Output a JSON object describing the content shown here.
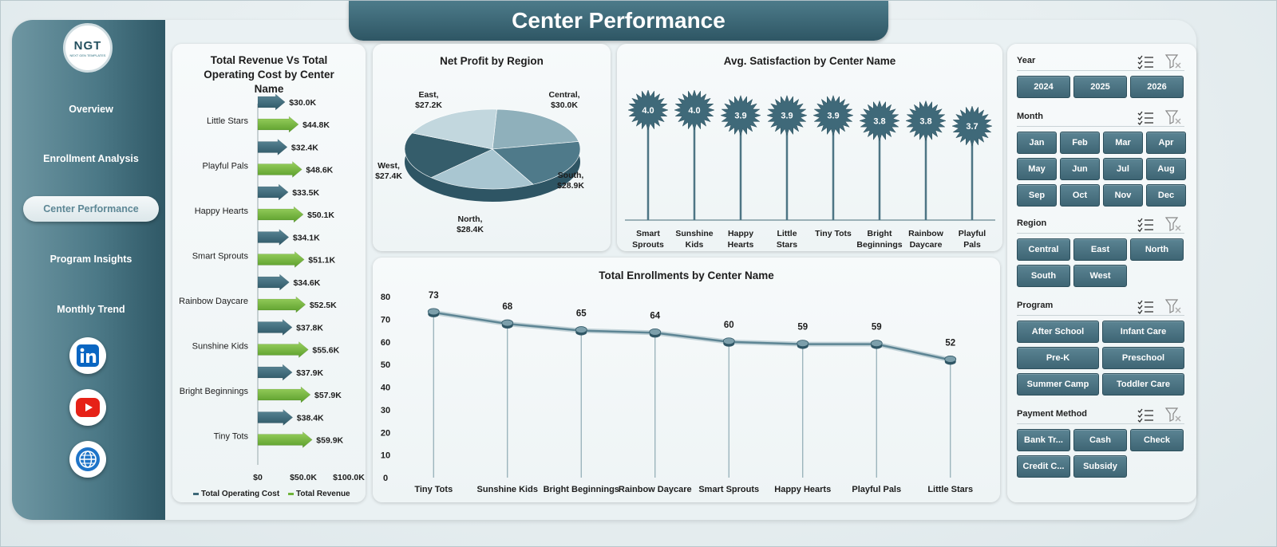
{
  "page": {
    "title": "Center Performance"
  },
  "logo": {
    "text": "NGT",
    "tagline": "NEXT GEN TEMPLATES"
  },
  "sidebar": {
    "items": [
      {
        "label": "Overview",
        "active": false
      },
      {
        "label": "Enrollment Analysis",
        "active": false
      },
      {
        "label": "Center Performance",
        "active": true
      },
      {
        "label": "Program Insights",
        "active": false
      },
      {
        "label": "Monthly Trend",
        "active": false
      }
    ],
    "social": [
      "linkedin-icon",
      "youtube-icon",
      "globe-icon"
    ]
  },
  "colors": {
    "dark": "#3d6878",
    "green": "#6fb43a",
    "accent": "#4c7987"
  },
  "chart_data": [
    {
      "type": "bar",
      "orientation": "horizontal",
      "title": "Total Revenue Vs Total Operating Cost by Center Name",
      "categories": [
        "Little Stars",
        "Playful Pals",
        "Happy Hearts",
        "Smart Sprouts",
        "Rainbow Daycare",
        "Sunshine Kids",
        "Bright Beginnings",
        "Tiny Tots"
      ],
      "series": [
        {
          "name": "Total Operating Cost",
          "values": [
            30.0,
            32.4,
            33.5,
            34.1,
            34.6,
            37.8,
            37.9,
            38.4
          ],
          "labels": [
            "$30.0K",
            "$32.4K",
            "$33.5K",
            "$34.1K",
            "$34.6K",
            "$37.8K",
            "$37.9K",
            "$38.4K"
          ]
        },
        {
          "name": "Total Revenue",
          "values": [
            44.8,
            48.6,
            50.1,
            51.1,
            52.5,
            55.6,
            57.9,
            59.9
          ],
          "labels": [
            "$44.8K",
            "$48.6K",
            "$50.1K",
            "$51.1K",
            "$52.5K",
            "$55.6K",
            "$57.9K",
            "$59.9K"
          ]
        }
      ],
      "xlim": [
        0,
        100
      ],
      "xticks": [
        "$0",
        "$50.0K",
        "$100.0K"
      ],
      "legend": "bottom"
    },
    {
      "type": "pie",
      "title": "Net Profit by Region",
      "slices": [
        {
          "label": "Central",
          "value": 30.0,
          "text": "$30.0K",
          "color": "#8fb0bb"
        },
        {
          "label": "South",
          "value": 28.9,
          "text": "$28.9K",
          "color": "#4f7a8a"
        },
        {
          "label": "North",
          "value": 28.4,
          "text": "$28.4K",
          "color": "#a9c6d1"
        },
        {
          "label": "West",
          "value": 27.4,
          "text": "$27.4K",
          "color": "#355d6b"
        },
        {
          "label": "East",
          "value": 27.2,
          "text": "$27.2K",
          "color": "#c2d7de"
        }
      ]
    },
    {
      "type": "lollipop",
      "title": "Avg. Satisfaction by Center Name",
      "categories": [
        "Smart Sprouts",
        "Sunshine Kids",
        "Happy Hearts",
        "Little Stars",
        "Tiny Tots",
        "Bright Beginnings",
        "Rainbow Daycare",
        "Playful Pals"
      ],
      "values": [
        4.0,
        4.0,
        3.9,
        3.9,
        3.9,
        3.8,
        3.8,
        3.7
      ],
      "labels": [
        "4.0",
        "4.0",
        "3.9",
        "3.9",
        "3.9",
        "3.8",
        "3.8",
        "3.7"
      ]
    },
    {
      "type": "line",
      "title": "Total Enrollments by Center Name",
      "categories": [
        "Tiny Tots",
        "Sunshine Kids",
        "Bright Beginnings",
        "Rainbow Daycare",
        "Smart Sprouts",
        "Happy Hearts",
        "Playful Pals",
        "Little Stars"
      ],
      "values": [
        73,
        68,
        65,
        64,
        60,
        59,
        59,
        52
      ],
      "labels": [
        "73",
        "68",
        "65",
        "64",
        "60",
        "59",
        "59",
        "52"
      ],
      "ylim": [
        0,
        80
      ],
      "yticks": [
        "0",
        "10",
        "20",
        "30",
        "40",
        "50",
        "60",
        "70",
        "80"
      ]
    }
  ],
  "slicers": [
    {
      "label": "Year",
      "options": [
        "2024",
        "2025",
        "2026"
      ]
    },
    {
      "label": "Month",
      "options": [
        "Jan",
        "Feb",
        "Mar",
        "Apr",
        "May",
        "Jun",
        "Jul",
        "Aug",
        "Sep",
        "Oct",
        "Nov",
        "Dec"
      ]
    },
    {
      "label": "Region",
      "options": [
        "Central",
        "East",
        "North",
        "South",
        "West"
      ]
    },
    {
      "label": "Program",
      "options": [
        "After School",
        "Infant Care",
        "Pre-K",
        "Preschool",
        "Summer Camp",
        "Toddler Care"
      ]
    },
    {
      "label": "Payment Method",
      "options": [
        "Bank Tr...",
        "Cash",
        "Check",
        "Credit C...",
        "Subsidy"
      ]
    }
  ]
}
